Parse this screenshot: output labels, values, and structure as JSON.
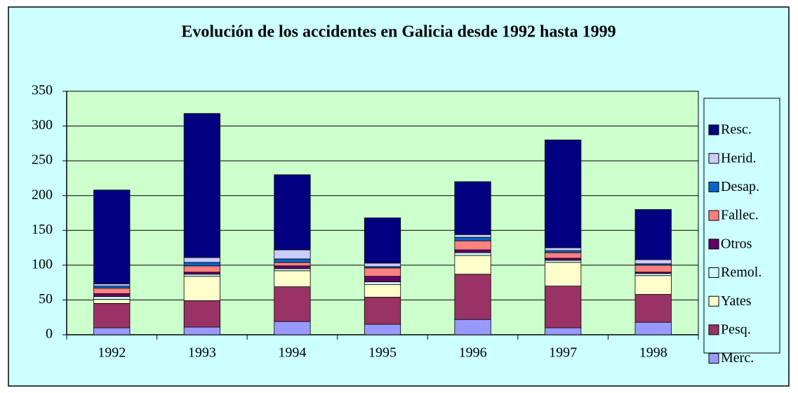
{
  "chart_data": {
    "type": "stacked_bar",
    "title": "Evolución de los accidentes en Galicia desde 1992 hasta 1999",
    "categories": [
      "1992",
      "1993",
      "1994",
      "1995",
      "1996",
      "1997",
      "1998"
    ],
    "series": [
      {
        "name": "Merc.",
        "color": "#9999ff",
        "values": [
          10,
          11,
          19,
          15,
          22,
          10,
          18
        ]
      },
      {
        "name": "Pesq.",
        "color": "#993366",
        "values": [
          35,
          38,
          50,
          39,
          65,
          60,
          40
        ]
      },
      {
        "name": "Yates",
        "color": "#ffffcc",
        "values": [
          6,
          35,
          23,
          18,
          27,
          34,
          27
        ]
      },
      {
        "name": "Remol.",
        "color": "#ccffff",
        "values": [
          4,
          3,
          3,
          4,
          4,
          3,
          3
        ]
      },
      {
        "name": "Otros",
        "color": "#660066",
        "values": [
          4,
          3,
          4,
          8,
          4,
          3,
          2
        ]
      },
      {
        "name": "Fallec.",
        "color": "#ff8080",
        "values": [
          8,
          9,
          5,
          12,
          13,
          8,
          10
        ]
      },
      {
        "name": "Desap.",
        "color": "#0066cc",
        "values": [
          3,
          5,
          5,
          2,
          5,
          3,
          2
        ]
      },
      {
        "name": "Herid.",
        "color": "#ccccff",
        "values": [
          3,
          7,
          13,
          5,
          4,
          4,
          6
        ]
      },
      {
        "name": "Resc.",
        "color": "#000080",
        "values": [
          135,
          207,
          108,
          65,
          76,
          155,
          72
        ]
      }
    ],
    "ylim": [
      0,
      350
    ],
    "yticks": [
      0,
      50,
      100,
      150,
      200,
      250,
      300,
      350
    ],
    "grid": true,
    "legend": "right"
  }
}
